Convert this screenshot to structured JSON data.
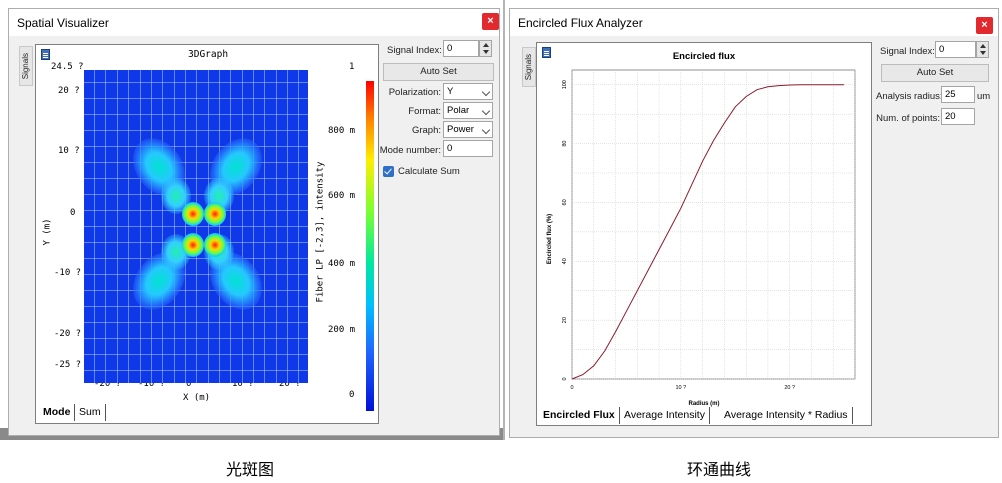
{
  "spatial_visualizer": {
    "title": "Spatial Visualizer",
    "close_glyph": "×",
    "signals_tab": "Signals",
    "plot": {
      "graph_title": "3DGraph",
      "corner_value": "24.5 ?",
      "y_ticks": [
        "20 ?",
        "10 ?",
        "0",
        "-10 ?",
        "-20 ?",
        "-25 ?"
      ],
      "x_ticks": [
        "-20 ?",
        "-10 ?",
        "0",
        "10 ?",
        "20 ?"
      ],
      "xlabel": "X (m)",
      "ylabel": "Y (m)",
      "colorbar_top": "1",
      "colorbar_ticks": [
        "800 m",
        "600 m",
        "400 m",
        "200 m",
        "0"
      ],
      "colorbar_label": "Fiber LP [-2,3], intensity",
      "colormap": "jet"
    },
    "tabs": [
      "Mode",
      "Sum"
    ],
    "active_tab": "Mode",
    "controls": {
      "signal_index_label": "Signal Index:",
      "signal_index_value": "0",
      "auto_set_label": "Auto Set",
      "polarization_label": "Polarization:",
      "polarization_value": "Y",
      "format_label": "Format:",
      "format_value": "Polar",
      "graph_label": "Graph:",
      "graph_value": "Power",
      "mode_number_label": "Mode number:",
      "mode_number_value": "0",
      "calculate_sum_label": "Calculate Sum",
      "calculate_sum_checked": true
    }
  },
  "encircled_flux_analyzer": {
    "title": "Encircled Flux Analyzer",
    "close_glyph": "×",
    "signals_tab": "Signals",
    "tabs": [
      "Encircled Flux",
      "Average Intensity",
      "Average Intensity * Radius"
    ],
    "active_tab": "Encircled Flux",
    "controls": {
      "signal_index_label": "Signal Index:",
      "signal_index_value": "0",
      "auto_set_label": "Auto Set",
      "analysis_radius_label": "Analysis radius:",
      "analysis_radius_value": "25",
      "analysis_radius_unit": "um",
      "num_points_label": "Num. of points:",
      "num_points_value": "20"
    }
  },
  "captions": {
    "left": "光斑图",
    "right": "环通曲线"
  },
  "colors": {
    "close_button": "#e22a2e",
    "curve": "#8b1a2a",
    "checkbox": "#2f6fc7",
    "heatmap_background": "#0f38e8"
  },
  "chart_data": {
    "type": "line",
    "title": "Encircled flux",
    "xlabel": "Radius (m)",
    "ylabel": "Encircled flux (%)",
    "x_tick_labels": [
      "0",
      "10 ?",
      "20 ?"
    ],
    "y_tick_labels": [
      "0",
      "20",
      "40",
      "60",
      "80",
      "100"
    ],
    "xlim": [
      0,
      26
    ],
    "ylim": [
      0,
      105
    ],
    "grid": true,
    "series": [
      {
        "name": "",
        "x": [
          0,
          1,
          2,
          3,
          4,
          5,
          6,
          7,
          8,
          9,
          10,
          11,
          12,
          13,
          14,
          15,
          16,
          17,
          18,
          19,
          20,
          21,
          22,
          23,
          24,
          25
        ],
        "y": [
          0,
          1.5,
          4.5,
          9.5,
          16,
          23,
          30,
          37,
          44,
          51,
          58,
          66,
          74,
          81,
          87,
          92.5,
          96,
          98.3,
          99.3,
          99.7,
          99.9,
          100,
          100,
          100,
          100,
          100
        ]
      }
    ]
  }
}
